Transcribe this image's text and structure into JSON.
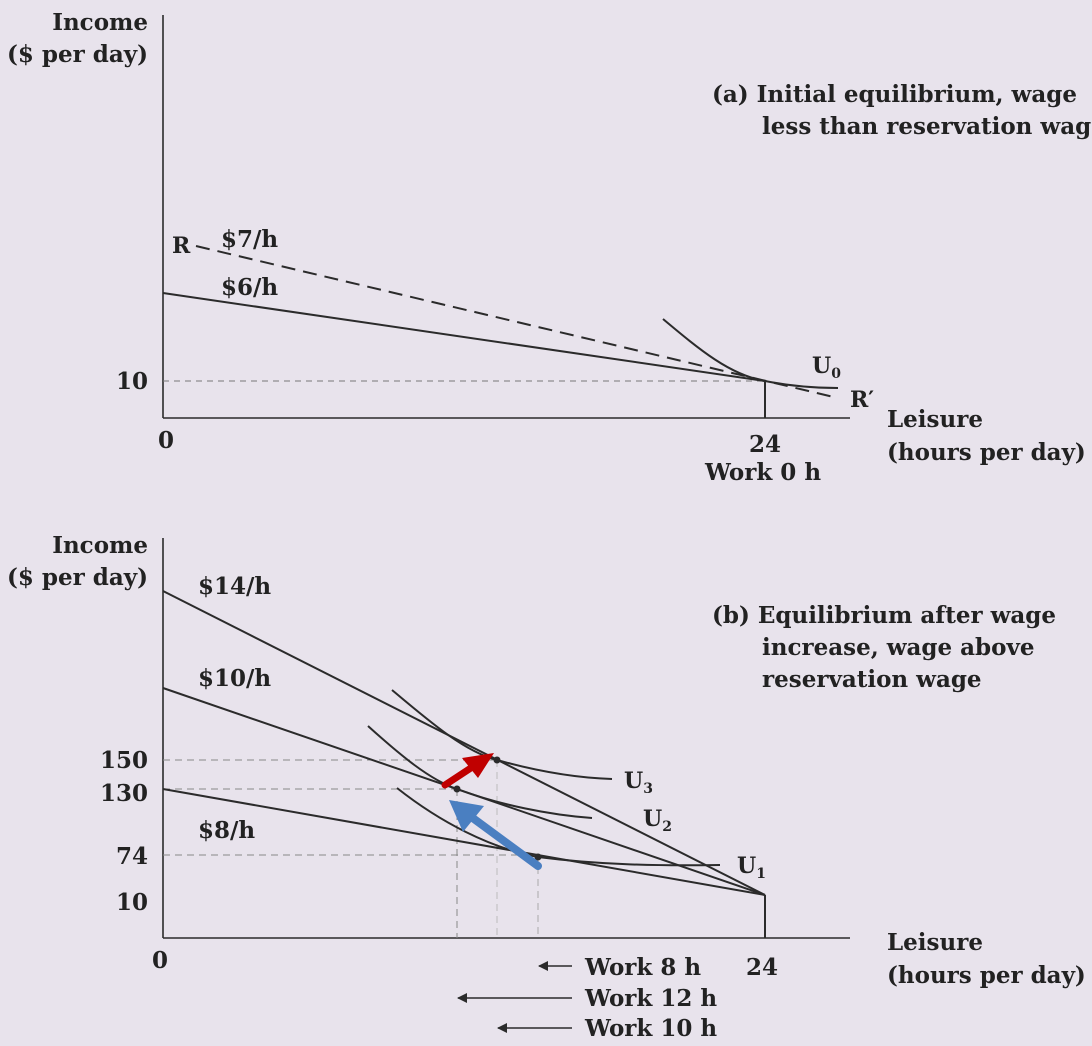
{
  "panel_a": {
    "y_label_line1": "Income",
    "y_label_line2": "($ per day)",
    "caption_line1": "(a) Initial equilibrium, wage",
    "caption_line2": "less than reservation wage",
    "R_label": "R",
    "R_prime_label": "R′",
    "wage_dashed": "$7/h",
    "wage_solid": "$6/h",
    "tick_10": "10",
    "origin": "0",
    "tick_24": "24",
    "work_label": "Work 0 h",
    "curve_label": "U",
    "curve_sub": "0",
    "x_label_line1": "Leisure",
    "x_label_line2": "(hours per day)"
  },
  "panel_b": {
    "y_label_line1": "Income",
    "y_label_line2": "($ per day)",
    "caption_line1": "(b) Equilibrium after wage",
    "caption_line2": "increase, wage above",
    "caption_line3": "reservation wage",
    "wage_14": "$14/h",
    "wage_10": "$10/h",
    "wage_8": "$8/h",
    "tick_150": "150",
    "tick_130": "130",
    "tick_74": "74",
    "tick_10": "10",
    "origin": "0",
    "tick_24": "24",
    "u3": "U",
    "u3_sub": "3",
    "u2": "U",
    "u2_sub": "2",
    "u1": "U",
    "u1_sub": "1",
    "work_8": "Work 8 h",
    "work_12": "Work 12 h",
    "work_10": "Work 10 h",
    "x_label_line1": "Leisure",
    "x_label_line2": "(hours per day)"
  },
  "colors": {
    "background": "#e8e3ec",
    "ink": "#2b2b2b",
    "red_arrow": "#c00000",
    "blue_arrow": "#4a7fc1"
  }
}
